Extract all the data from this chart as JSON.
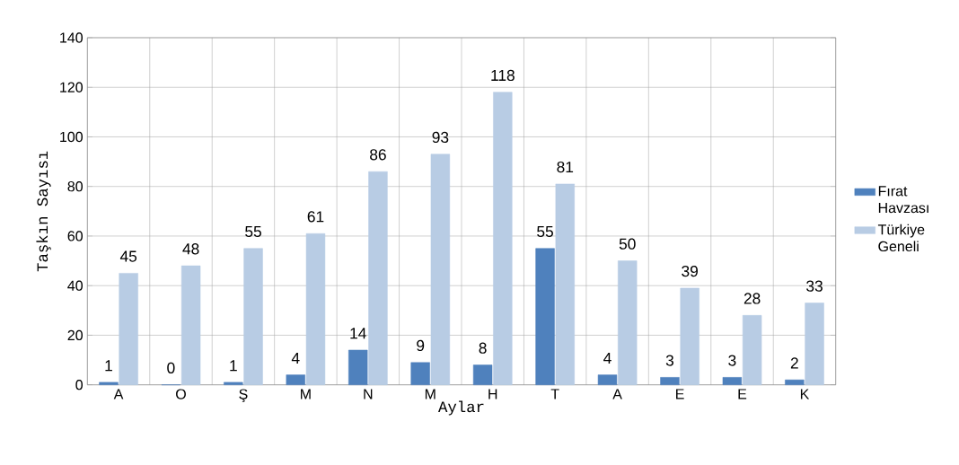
{
  "chart_data": {
    "type": "bar",
    "xlabel": "Aylar",
    "ylabel": "Taşkın Sayısı",
    "categories": [
      "A",
      "O",
      "Ş",
      "M",
      "N",
      "M",
      "H",
      "T",
      "A",
      "E",
      "E",
      "K"
    ],
    "series": [
      {
        "name": "Fırat Havzası",
        "color": "#4f81bd",
        "values": [
          1,
          0,
          1,
          4,
          14,
          9,
          8,
          55,
          4,
          3,
          3,
          2
        ]
      },
      {
        "name": "Türkiye Geneli",
        "color": "#b8cce4",
        "values": [
          45,
          48,
          55,
          61,
          86,
          93,
          118,
          81,
          50,
          39,
          28,
          33
        ]
      }
    ],
    "ylim": [
      0,
      140
    ],
    "yticks": [
      0,
      20,
      40,
      60,
      80,
      100,
      120,
      140
    ],
    "grid": true,
    "legend": "right",
    "data_labels": true
  }
}
